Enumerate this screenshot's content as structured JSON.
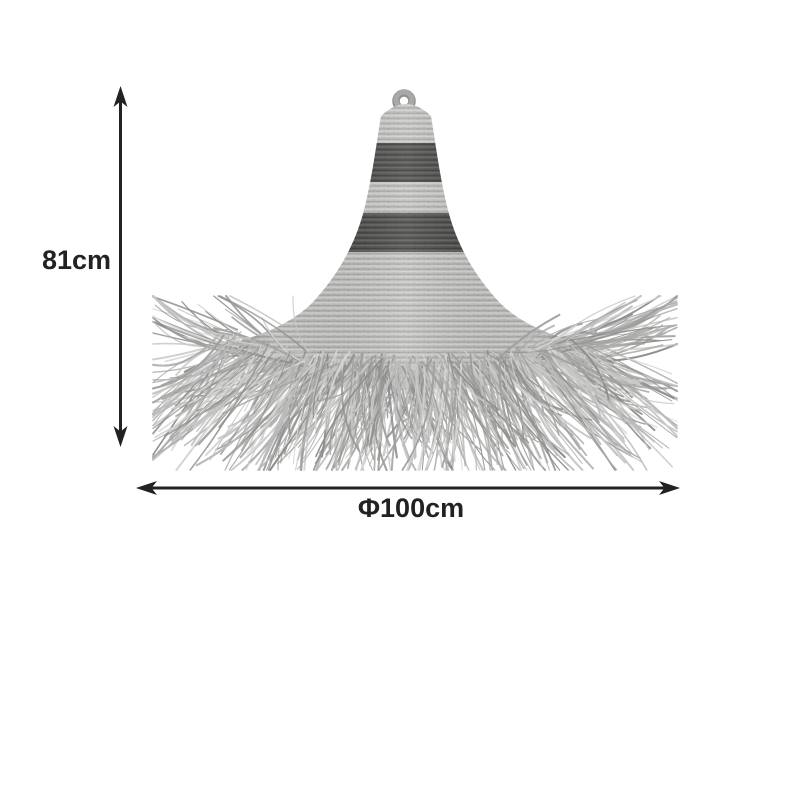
{
  "diagram": {
    "type": "product-dimension-diagram",
    "background": "#ffffff",
    "dimensions": {
      "height": {
        "label": "81cm",
        "orientation": "vertical"
      },
      "diameter": {
        "label": "Φ100cm",
        "orientation": "horizontal"
      },
      "line_color": "#242122"
    },
    "icons": {
      "vertical_arrow": "double-headed-vertical-arrow-icon",
      "horizontal_arrow": "double-headed-horizontal-arrow-icon"
    },
    "product": {
      "kind": "conical-fringed-pendant-lamp",
      "body_color": "#bfbfbd",
      "body_row_light": "#cfcfcd",
      "body_row_dark": "#a7a7a5",
      "stripe_color": "#4c4c4a",
      "stripe_row_dark": "#383836",
      "stripe_row_light": "#5e5e5c",
      "loop_color": "#a9a9a7",
      "underbrim_shadow": "#9a9a98",
      "fringe_palette": [
        "#d4d4d2",
        "#c7c7c5",
        "#bababa",
        "#adadab",
        "#9f9f9d",
        "#8e8e8c"
      ]
    }
  }
}
